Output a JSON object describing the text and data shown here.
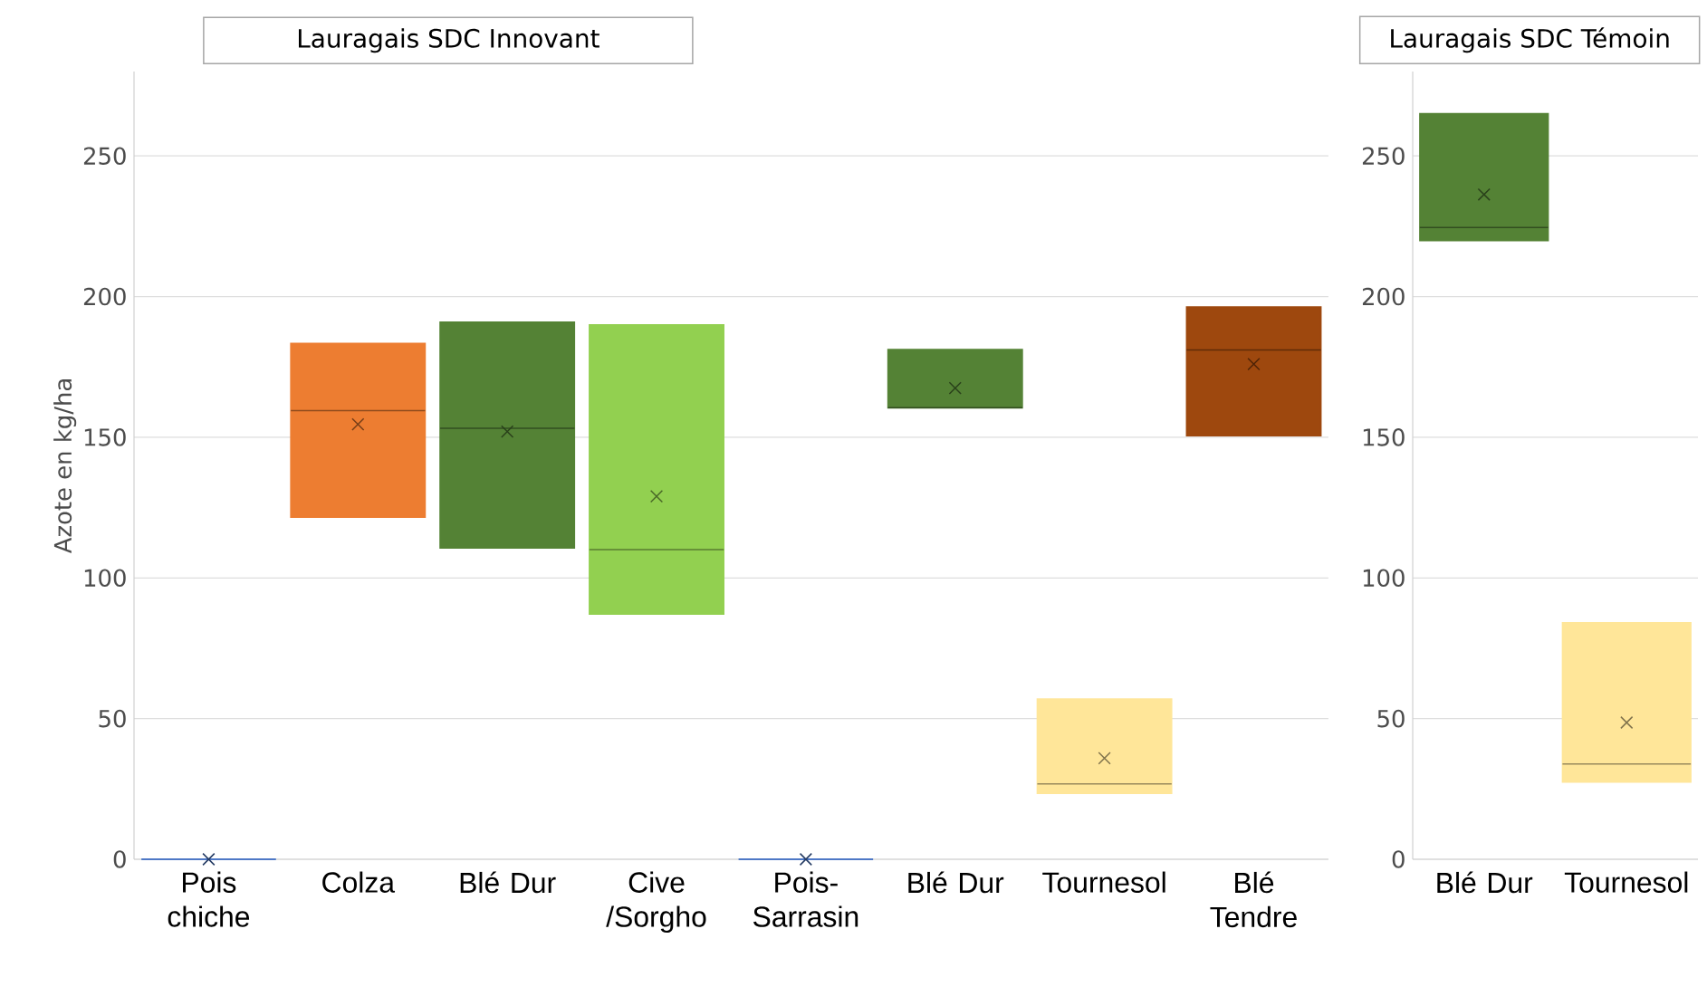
{
  "chart_data": [
    {
      "type": "box",
      "title": "Lauragais SDC Innovant",
      "ylabel": "Azote  en kg/ha",
      "categories": [
        "Pois chiche",
        "Colza",
        "Blé Dur",
        "Cive /Sorgho",
        "Pois-Sarrasin",
        "Blé Dur",
        "Tournesol",
        "Blé Tendre"
      ],
      "boxes": [
        {
          "low": 0,
          "q1": 0,
          "median": 0,
          "q3": 0,
          "high": 0,
          "mean": 0
        },
        {
          "low": 121.6,
          "q1": 121.6,
          "median": 159.5,
          "q3": 183.4,
          "high": 183.4,
          "mean": 154.6
        },
        {
          "low": 110.6,
          "q1": 110.6,
          "median": 153.2,
          "q3": 190.9,
          "high": 190.9,
          "mean": 152
        },
        {
          "low": 87.1,
          "q1": 87.1,
          "median": 110.1,
          "q3": 190,
          "high": 190,
          "mean": 129
        },
        {
          "low": 0,
          "q1": 0,
          "median": 0,
          "q3": 0,
          "high": 0,
          "mean": 0
        },
        {
          "low": 160.4,
          "q1": 160.4,
          "median": 160.5,
          "q3": 181.2,
          "high": 181.2,
          "mean": 167.5
        },
        {
          "low": 23.4,
          "q1": 23.4,
          "median": 26.8,
          "q3": 57,
          "high": 57,
          "mean": 35.9
        },
        {
          "low": 150.5,
          "q1": 150.5,
          "median": 181,
          "q3": 196.3,
          "high": 196.3,
          "mean": 176
        }
      ],
      "colors": [
        "#4472c4",
        "#ed7d31",
        "#548235",
        "#92d050",
        "#4472c4",
        "#548235",
        "#ffe699",
        "#9e480e"
      ],
      "ylim": [
        0,
        280
      ],
      "yticks": [
        0,
        50,
        100,
        150,
        200,
        250
      ],
      "grid": "y"
    },
    {
      "type": "box",
      "title": "Lauragais SDC Témoin",
      "categories": [
        "Blé Dur",
        "Tournesol"
      ],
      "boxes": [
        {
          "low": 219.9,
          "q1": 219.9,
          "median": 224.6,
          "q3": 265,
          "high": 265,
          "mean": 236.3
        },
        {
          "low": 27.4,
          "q1": 27.4,
          "median": 33.9,
          "q3": 84.1,
          "high": 84.1,
          "mean": 48.6
        }
      ],
      "colors": [
        "#548235",
        "#ffe699"
      ],
      "ylim": [
        0,
        280
      ],
      "yticks": [
        0,
        50,
        100,
        150,
        200,
        250
      ],
      "grid": "y"
    }
  ]
}
